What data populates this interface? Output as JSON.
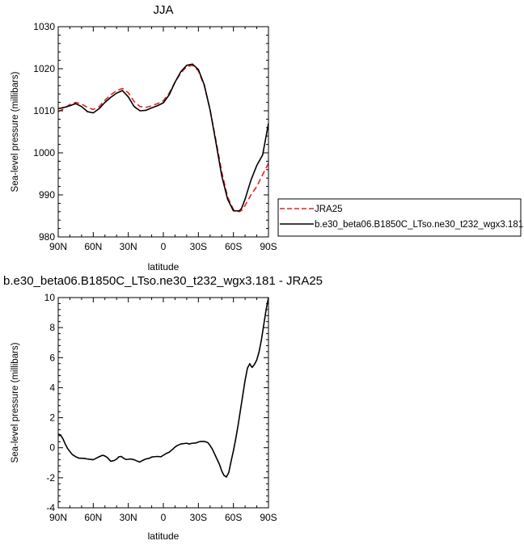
{
  "chart_data": [
    {
      "type": "line",
      "title": "JJA",
      "xlabel": "latitude",
      "ylabel": "Sea-level pressure (millibars)",
      "xlim": [
        90,
        -90
      ],
      "ylim": [
        980,
        1030
      ],
      "x_ticks": [
        90,
        60,
        30,
        0,
        -30,
        -60,
        -90
      ],
      "x_tick_labels": [
        "90N",
        "60N",
        "30N",
        "0",
        "30S",
        "60S",
        "90S"
      ],
      "y_ticks": [
        980,
        990,
        1000,
        1010,
        1020,
        1030
      ],
      "y_tick_labels": [
        "980",
        "990",
        "1000",
        "1010",
        "1020",
        "1030"
      ],
      "legend": "right",
      "series": [
        {
          "name": "JRA25",
          "color": "#e8211d",
          "dash": "dashed",
          "x": [
            90,
            85,
            80,
            75,
            70,
            65,
            60,
            55,
            50,
            45,
            40,
            35,
            30,
            25,
            20,
            15,
            10,
            5,
            0,
            -5,
            -10,
            -15,
            -20,
            -25,
            -30,
            -35,
            -40,
            -45,
            -50,
            -55,
            -60,
            -65,
            -67,
            -70,
            -75,
            -80,
            -85,
            -90
          ],
          "y": [
            1009.8,
            1010.5,
            1011.5,
            1012.0,
            1011.6,
            1010.8,
            1010.3,
            1011.0,
            1012.5,
            1013.8,
            1014.8,
            1015.3,
            1014.3,
            1012.2,
            1011.0,
            1010.8,
            1011.2,
            1011.7,
            1012.4,
            1014.2,
            1016.8,
            1019.0,
            1020.5,
            1020.8,
            1019.5,
            1016.0,
            1010.3,
            1003.0,
            995.5,
            989.5,
            986.5,
            986.0,
            986.3,
            987.5,
            990.0,
            992.0,
            994.8,
            997.5
          ]
        },
        {
          "name": "b.e30_beta06.B1850C_LTso.ne30_t232_wgx3.181",
          "color": "#000000",
          "dash": "solid",
          "x": [
            90,
            85,
            80,
            75,
            70,
            65,
            60,
            55,
            50,
            45,
            40,
            35,
            30,
            25,
            20,
            15,
            10,
            5,
            0,
            -5,
            -10,
            -15,
            -20,
            -25,
            -30,
            -35,
            -40,
            -45,
            -50,
            -55,
            -60,
            -65,
            -67,
            -70,
            -75,
            -80,
            -85,
            -90
          ],
          "y": [
            1010.5,
            1010.8,
            1011.2,
            1011.7,
            1011.0,
            1009.8,
            1009.5,
            1010.5,
            1012.0,
            1013.2,
            1014.2,
            1014.8,
            1013.3,
            1011.0,
            1010.0,
            1010.1,
            1010.7,
            1011.2,
            1011.9,
            1013.8,
            1016.8,
            1019.3,
            1020.8,
            1021.1,
            1019.8,
            1016.2,
            1010.2,
            1002.5,
            994.5,
            989.0,
            986.2,
            986.2,
            986.8,
            989.0,
            993.5,
            997.0,
            999.5,
            1007.0
          ]
        }
      ]
    },
    {
      "type": "line",
      "title": "b.e30_beta06.B1850C_LTso.ne30_t232_wgx3.181 - JRA25",
      "xlabel": "latitude",
      "ylabel": "Sea-level pressure (millibars)",
      "xlim": [
        90,
        -90
      ],
      "ylim": [
        -4,
        10
      ],
      "x_ticks": [
        90,
        60,
        30,
        0,
        -30,
        -60,
        -90
      ],
      "x_tick_labels": [
        "90N",
        "60N",
        "30N",
        "0",
        "30S",
        "60S",
        "90S"
      ],
      "y_ticks": [
        -4,
        -2,
        0,
        2,
        4,
        6,
        8,
        10
      ],
      "y_tick_labels": [
        "-4",
        "-2",
        "0",
        "2",
        "4",
        "6",
        "8",
        "10"
      ],
      "series": [
        {
          "color": "#000000",
          "dash": "solid",
          "x": [
            90,
            88,
            86,
            84,
            82,
            80,
            78,
            75,
            72,
            70,
            67,
            65,
            62,
            60,
            58,
            55,
            52,
            50,
            48,
            45,
            42,
            40,
            38,
            36,
            34,
            32,
            30,
            28,
            25,
            22,
            20,
            18,
            15,
            12,
            10,
            8,
            5,
            2,
            0,
            -2,
            -5,
            -8,
            -10,
            -12,
            -15,
            -18,
            -20,
            -22,
            -25,
            -28,
            -30,
            -32,
            -35,
            -38,
            -40,
            -42,
            -45,
            -48,
            -50,
            -52,
            -54,
            -56,
            -58,
            -60,
            -62,
            -64,
            -66,
            -68,
            -70,
            -72,
            -74,
            -75,
            -76,
            -78,
            -80,
            -82,
            -84,
            -86,
            -88,
            -90
          ],
          "y": [
            0.9,
            0.85,
            0.6,
            0.25,
            -0.05,
            -0.25,
            -0.45,
            -0.6,
            -0.7,
            -0.7,
            -0.72,
            -0.75,
            -0.78,
            -0.8,
            -0.72,
            -0.6,
            -0.5,
            -0.55,
            -0.65,
            -0.9,
            -0.85,
            -0.75,
            -0.6,
            -0.58,
            -0.7,
            -0.78,
            -0.77,
            -0.75,
            -0.8,
            -0.9,
            -0.95,
            -0.85,
            -0.75,
            -0.7,
            -0.62,
            -0.6,
            -0.58,
            -0.6,
            -0.5,
            -0.4,
            -0.3,
            -0.1,
            0.05,
            0.15,
            0.25,
            0.28,
            0.3,
            0.25,
            0.3,
            0.32,
            0.38,
            0.42,
            0.42,
            0.35,
            0.15,
            -0.1,
            -0.6,
            -1.1,
            -1.55,
            -1.85,
            -1.95,
            -1.65,
            -0.9,
            -0.2,
            0.6,
            1.5,
            2.5,
            3.5,
            4.5,
            5.3,
            5.6,
            5.45,
            5.35,
            5.55,
            5.85,
            6.4,
            7.2,
            8.2,
            9.2,
            10.0
          ]
        }
      ]
    }
  ]
}
